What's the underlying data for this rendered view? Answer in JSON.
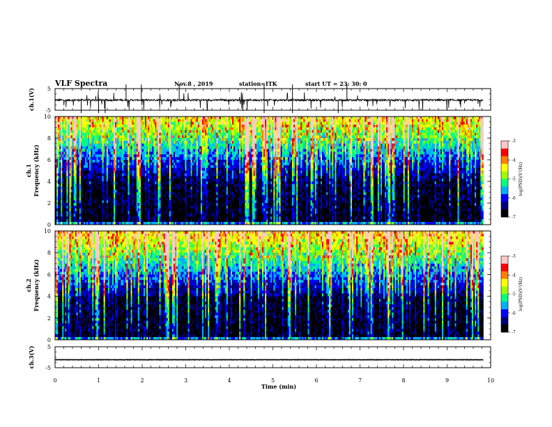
{
  "header": {
    "title": "VLF Spectra",
    "date": "Nov.8 , 2019",
    "station": "station=ITK",
    "start": "start UT = 23: 30: 0"
  },
  "colors": {
    "colormap": [
      "#000000",
      "#00007a",
      "#0000ff",
      "#00b0ff",
      "#00ff7f",
      "#9cff00",
      "#ffff00",
      "#ff7f00",
      "#ff0000",
      "#ffc8c8",
      "#ffffff"
    ],
    "trace": "#000000",
    "axes": "#000000",
    "background": "#ffffff"
  },
  "chart_data": [
    {
      "type": "line",
      "id": "ch1_waveform",
      "ylabel": "ch.1(V)",
      "ylim": [
        -5,
        5
      ],
      "yticks": [
        "5",
        "-5"
      ],
      "xlim": [
        0,
        10
      ],
      "baseline": -0.3,
      "series": [
        {
          "values": "noisy waveform around -0.3 V with frequent negative spikes down to about -5 V and positive spikes up to about +5 V"
        }
      ]
    },
    {
      "type": "heatmap",
      "id": "ch1_spectrogram",
      "ylabel": "ch.1",
      "ylabel2": "Frequency (kHz)",
      "ylim": [
        0,
        10
      ],
      "yticks": [
        "0",
        "2",
        "4",
        "6",
        "8",
        "10"
      ],
      "xlim": [
        0,
        10
      ],
      "x_data_end": 9.83,
      "colorbar": {
        "label": "log(PSD)(V²/Hz)",
        "range": [
          -7,
          -3
        ],
        "ticks": [
          "-3",
          "-4",
          "-5",
          "-6",
          "-7"
        ]
      },
      "description_of_values": "log PSD mostly -6 to -7 below 4 kHz, rising to -4 to -5 above 6 kHz with numerous broadband vertical sferic streaks reaching -3"
    },
    {
      "type": "heatmap",
      "id": "ch2_spectrogram",
      "ylabel": "ch.2",
      "ylabel2": "Frequency (kHz)",
      "ylim": [
        0,
        10
      ],
      "yticks": [
        "0",
        "2",
        "4",
        "6",
        "8",
        "10"
      ],
      "xlim": [
        0,
        10
      ],
      "x_data_end": 9.83,
      "colorbar": {
        "label": "log(PSD)(V²/Hz)",
        "range": [
          -7,
          -3
        ],
        "ticks": [
          "-3",
          "-4",
          "-5",
          "-6",
          "-7"
        ]
      },
      "description_of_values": "similar to ch.1 with slightly stronger high-frequency power and more red near 8-10 kHz"
    },
    {
      "type": "line",
      "id": "ch3_waveform",
      "ylabel": "ch.3(V)",
      "ylim": [
        -5,
        5
      ],
      "yticks": [
        "5",
        "-5"
      ],
      "xlim": [
        0,
        10
      ],
      "baseline": -1.2,
      "series": [
        {
          "values": "nearly flat trace at about -1.2 V"
        }
      ]
    }
  ],
  "xaxis": {
    "label": "Time (min)",
    "ticks": [
      "0",
      "1",
      "2",
      "3",
      "4",
      "5",
      "6",
      "7",
      "8",
      "9",
      "10"
    ]
  }
}
